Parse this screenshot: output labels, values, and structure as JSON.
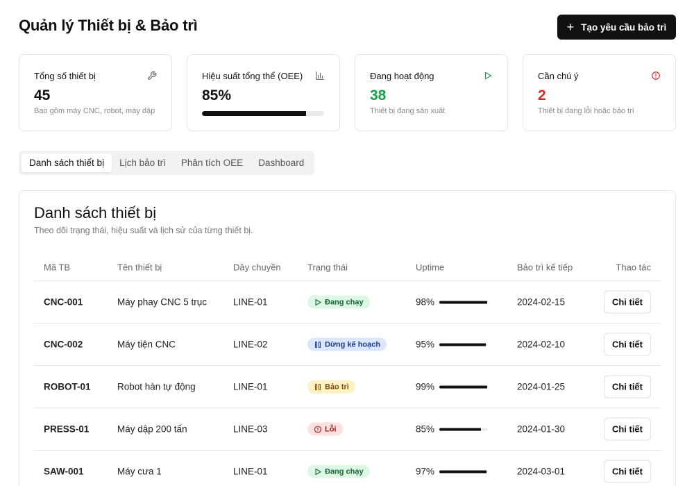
{
  "header": {
    "title": "Quản lý Thiết bị & Bảo trì",
    "create_button": "Tạo yêu cầu bảo trì"
  },
  "stats": [
    {
      "label": "Tổng số thiết bị",
      "value": "45",
      "sub": "Bao gồm máy CNC, robot, máy dập",
      "icon": "wrench-icon",
      "value_color": "#111111"
    },
    {
      "label": "Hiệu suất tổng thể (OEE)",
      "value": "85%",
      "progress": 0.85,
      "icon": "bar-chart-icon",
      "value_color": "#111111"
    },
    {
      "label": "Đang hoạt động",
      "value": "38",
      "sub": "Thiết bị đang sản xuất",
      "icon": "play-icon",
      "value_color": "#16a34a"
    },
    {
      "label": "Cần chú ý",
      "value": "2",
      "sub": "Thiết bị đang lỗi hoặc bảo trì",
      "icon": "alert-circle-icon",
      "value_color": "#dc2626"
    }
  ],
  "tabs": [
    {
      "label": "Danh sách thiết bị",
      "active": true
    },
    {
      "label": "Lịch bảo trì",
      "active": false
    },
    {
      "label": "Phân tích OEE",
      "active": false
    },
    {
      "label": "Dashboard",
      "active": false
    }
  ],
  "panel": {
    "title": "Danh sách thiết bị",
    "description": "Theo dõi trạng thái, hiệu suất và lịch sử của từng thiết bị."
  },
  "table": {
    "columns": [
      "Mã TB",
      "Tên thiết bị",
      "Dây chuyền",
      "Trạng thái",
      "Uptime",
      "Bảo trì kế tiếp",
      "Thao tác"
    ],
    "rows": [
      {
        "id": "CNC-001",
        "name": "Máy phay CNC 5 trục",
        "line": "LINE-01",
        "status": "Đang chạy",
        "status_type": "running",
        "uptime": "98%",
        "uptime_value": 0.98,
        "next": "2024-02-15",
        "action": "Chi tiết"
      },
      {
        "id": "CNC-002",
        "name": "Máy tiện CNC",
        "line": "LINE-02",
        "status": "Dừng kế hoạch",
        "status_type": "planned",
        "uptime": "95%",
        "uptime_value": 0.95,
        "next": "2024-02-10",
        "action": "Chi tiết"
      },
      {
        "id": "ROBOT-01",
        "name": "Robot hàn tự động",
        "line": "LINE-01",
        "status": "Bảo trì",
        "status_type": "maint",
        "uptime": "99%",
        "uptime_value": 0.99,
        "next": "2024-01-25",
        "action": "Chi tiết"
      },
      {
        "id": "PRESS-01",
        "name": "Máy dập 200 tấn",
        "line": "LINE-03",
        "status": "Lỗi",
        "status_type": "error",
        "uptime": "85%",
        "uptime_value": 0.85,
        "next": "2024-01-30",
        "action": "Chi tiết"
      },
      {
        "id": "SAW-001",
        "name": "Máy cưa 1",
        "line": "LINE-01",
        "status": "Đang chạy",
        "status_type": "running",
        "uptime": "97%",
        "uptime_value": 0.97,
        "next": "2024-03-01",
        "action": "Chi tiết"
      }
    ]
  }
}
